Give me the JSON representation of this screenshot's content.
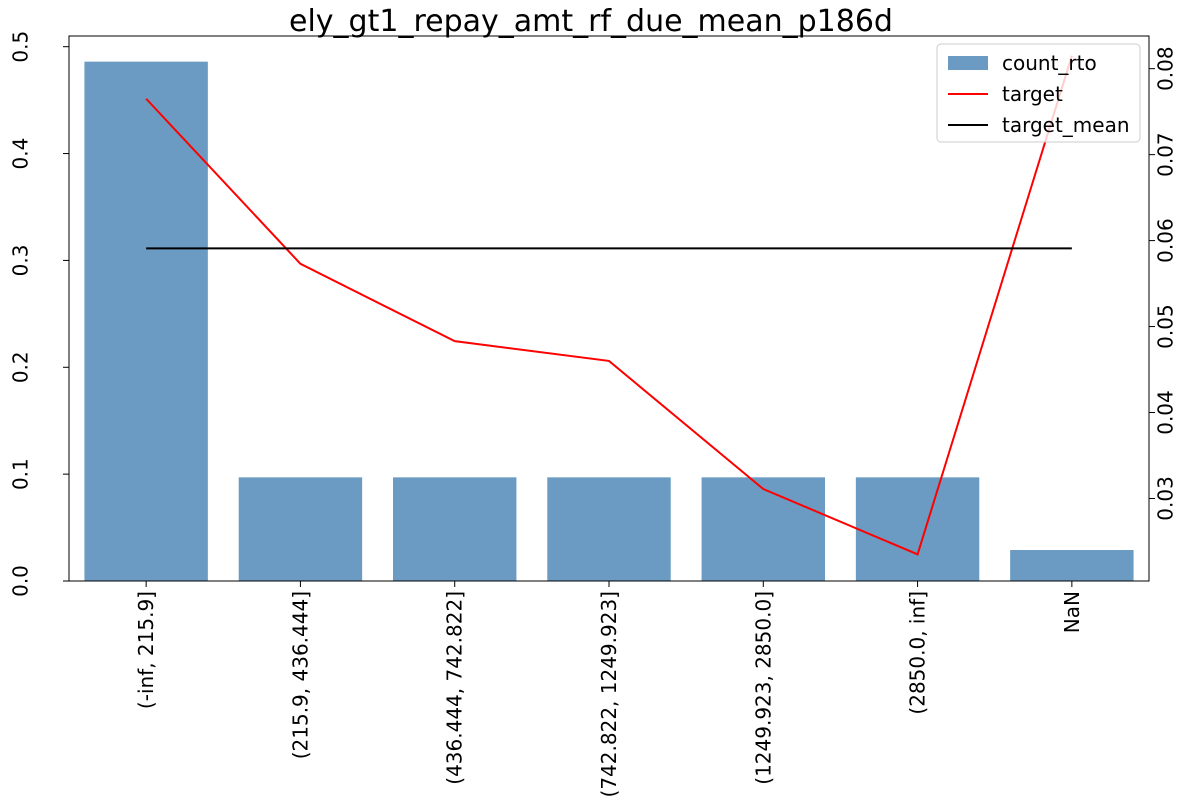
{
  "chart_data": {
    "type": "bar",
    "title": "ely_gt1_repay_amt_rf_due_mean_p186d",
    "categories": [
      "(-inf, 215.9]",
      "(215.9, 436.444]",
      "(436.444, 742.822]",
      "(742.822, 1249.923]",
      "(1249.923, 2850.0]",
      "(2850.0, inf]",
      "NaN"
    ],
    "series": [
      {
        "name": "count_rto",
        "type": "bar",
        "axis": "left",
        "color": "#6b9bc3",
        "values": [
          0.486,
          0.097,
          0.097,
          0.097,
          0.097,
          0.097,
          0.029
        ]
      },
      {
        "name": "target",
        "type": "line",
        "axis": "right",
        "color": "#ff0000",
        "values": [
          0.0765,
          0.0573,
          0.0483,
          0.046,
          0.0311,
          0.0235,
          0.0815
        ]
      },
      {
        "name": "target_mean",
        "type": "line",
        "axis": "right",
        "color": "#000000",
        "values": [
          0.0591,
          0.0591,
          0.0591,
          0.0591,
          0.0591,
          0.0591,
          0.0591
        ]
      }
    ],
    "y_left": {
      "lim": [
        0,
        0.51
      ],
      "ticks": [
        0.0,
        0.1,
        0.2,
        0.3,
        0.4,
        0.5
      ],
      "tick_labels": [
        "0.0",
        "0.1",
        "0.2",
        "0.3",
        "0.4",
        "0.5"
      ]
    },
    "y_right": {
      "lim": [
        0.0204,
        0.0838
      ],
      "ticks": [
        0.03,
        0.04,
        0.05,
        0.06,
        0.07,
        0.08
      ],
      "tick_labels": [
        "0.03",
        "0.04",
        "0.05",
        "0.06",
        "0.07",
        "0.08"
      ]
    },
    "grid": false,
    "legend_position": "top-right"
  }
}
